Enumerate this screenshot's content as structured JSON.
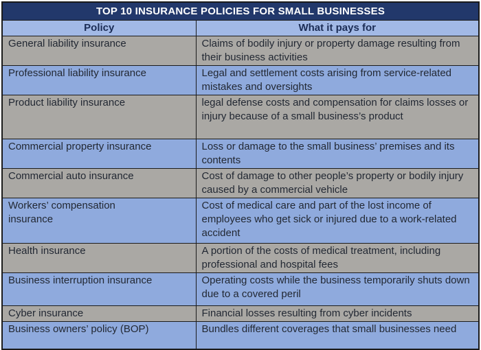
{
  "chart_data": {
    "type": "table",
    "title": "TOP 10 INSURANCE POLICIES FOR SMALL BUSINESSES",
    "columns": [
      "Policy",
      "What it pays for"
    ],
    "rows": [
      {
        "policy": "General liability insurance",
        "pays_for": "Claims of bodily injury or property damage resulting from their business activities"
      },
      {
        "policy": "Professional liability insurance",
        "pays_for": "Legal and settlement costs arising from service-related mistakes and oversights"
      },
      {
        "policy": "Product liability insurance",
        "pays_for": "legal defense costs and compensation for claims losses or injury because of a small business’s product"
      },
      {
        "policy": "Commercial property insurance",
        "pays_for": "Loss or damage to the small business’ premises and its contents"
      },
      {
        "policy": "Commercial auto insurance",
        "pays_for": "Cost of damage to other people’s property or bodily injury caused by a commercial vehicle"
      },
      {
        "policy": "Workers’ compensation insurance",
        "pays_for": "Cost of medical care and part of the lost income of employees who get sick or injured due to a work-related accident"
      },
      {
        "policy": "Health insurance",
        "pays_for": "A portion of the costs of medical treatment, including professional and hospital fees"
      },
      {
        "policy": "Business interruption insurance",
        "pays_for": "Operating costs while the business temporarily shuts down due to a covered peril"
      },
      {
        "policy": "Cyber insurance",
        "pays_for": "Financial losses resulting from cyber incidents"
      },
      {
        "policy": "Business owners’ policy (BOP)",
        "pays_for": "Bundles different coverages that small businesses need"
      }
    ]
  },
  "colors": {
    "title_bar": "#22386b",
    "header_row": "#a2b9e6",
    "row_blue": "#8faadd",
    "row_gray": "#aaa8a4",
    "border": "#1a1a1a",
    "body_text": "#222833",
    "header_text": "#1b2c55",
    "title_text": "#ffffff"
  }
}
